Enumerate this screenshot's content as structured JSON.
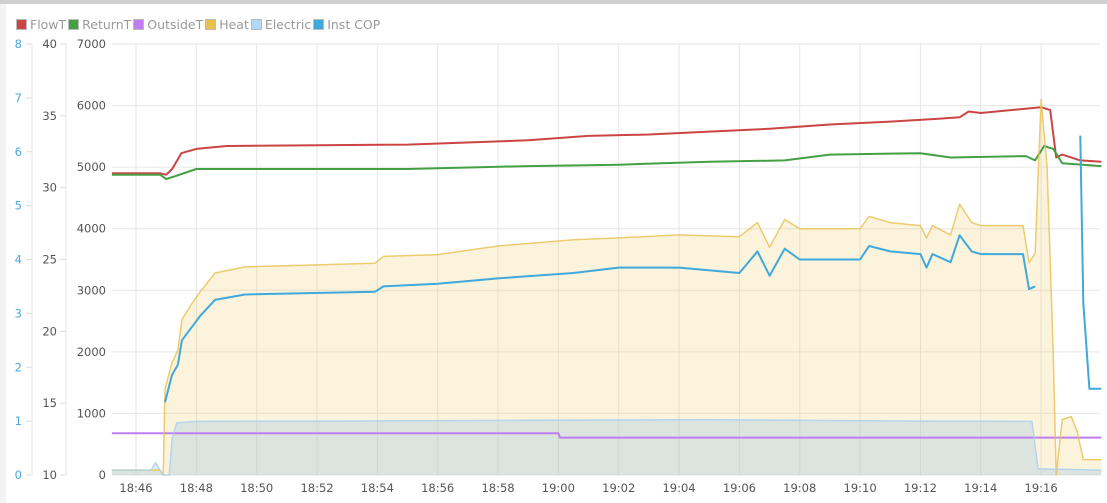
{
  "chart_data": {
    "type": "line",
    "title": "",
    "x_unit": "minutes after 18:45",
    "x_ticks": [
      "18:46",
      "18:48",
      "18:50",
      "18:52",
      "18:54",
      "18:56",
      "18:58",
      "19:00",
      "19:02",
      "19:04",
      "19:06",
      "19:08",
      "19:10",
      "19:12",
      "19:14",
      "19:16"
    ],
    "xlim": [
      0.2,
      33.0
    ],
    "axes": {
      "cop": {
        "ticks": [
          "0",
          "1",
          "2",
          "3",
          "4",
          "5",
          "6",
          "7",
          "8"
        ],
        "range": [
          0,
          8
        ],
        "color": "#4aa8df"
      },
      "temp": {
        "ticks": [
          "10",
          "15",
          "20",
          "25",
          "30",
          "35",
          "40"
        ],
        "range": [
          10,
          40
        ]
      },
      "power": {
        "ticks": [
          "0",
          "1000",
          "2000",
          "3000",
          "4000",
          "5000",
          "6000",
          "7000"
        ],
        "range": [
          0,
          7000
        ]
      }
    },
    "grid": true,
    "legend_position": "top-left",
    "series": [
      {
        "name": "FlowT",
        "axis": "temp",
        "color": "#cc4444",
        "fill": false,
        "points": [
          [
            0.2,
            31.0
          ],
          [
            1.8,
            31.0
          ],
          [
            2.0,
            30.9
          ],
          [
            2.2,
            31.3
          ],
          [
            2.5,
            32.4
          ],
          [
            3,
            32.7
          ],
          [
            4,
            32.9
          ],
          [
            10,
            33.0
          ],
          [
            14,
            33.3
          ],
          [
            16,
            33.6
          ],
          [
            18,
            33.7
          ],
          [
            20,
            33.9
          ],
          [
            22,
            34.1
          ],
          [
            24,
            34.4
          ],
          [
            26,
            34.6
          ],
          [
            27.6,
            34.8
          ],
          [
            28.3,
            34.9
          ],
          [
            28.6,
            35.3
          ],
          [
            29,
            35.2
          ],
          [
            31.0,
            35.6
          ],
          [
            31.3,
            35.4
          ],
          [
            31.5,
            32.1
          ],
          [
            31.7,
            32.3
          ],
          [
            32.3,
            31.9
          ],
          [
            33,
            31.8
          ]
        ]
      },
      {
        "name": "ReturnT",
        "axis": "temp",
        "color": "#44a044",
        "fill": false,
        "points": [
          [
            0.2,
            30.9
          ],
          [
            1.8,
            30.9
          ],
          [
            2.0,
            30.6
          ],
          [
            2.3,
            30.8
          ],
          [
            3,
            31.3
          ],
          [
            10,
            31.3
          ],
          [
            14,
            31.5
          ],
          [
            17,
            31.6
          ],
          [
            20,
            31.8
          ],
          [
            22.5,
            31.9
          ],
          [
            24,
            32.3
          ],
          [
            27,
            32.4
          ],
          [
            28,
            32.1
          ],
          [
            30.5,
            32.2
          ],
          [
            30.8,
            31.9
          ],
          [
            31.1,
            32.9
          ],
          [
            31.4,
            32.7
          ],
          [
            31.7,
            31.7
          ],
          [
            33,
            31.5
          ]
        ]
      },
      {
        "name": "OutsideT",
        "axis": "temp",
        "color": "#c07ef0",
        "fill": false,
        "points": [
          [
            0.2,
            12.9
          ],
          [
            15,
            12.9
          ],
          [
            15.05,
            12.6
          ],
          [
            33,
            12.6
          ]
        ]
      },
      {
        "name": "Heat",
        "axis": "power",
        "color": "#e8c050",
        "fill": true,
        "points": [
          [
            0.2,
            80
          ],
          [
            1.8,
            80
          ],
          [
            1.9,
            0
          ],
          [
            1.96,
            1400
          ],
          [
            2.19,
            1820
          ],
          [
            2.39,
            2030
          ],
          [
            2.52,
            2520
          ],
          [
            2.72,
            2680
          ],
          [
            2.86,
            2790
          ],
          [
            3.12,
            2970
          ],
          [
            3.62,
            3280
          ],
          [
            4.61,
            3380
          ],
          [
            8.92,
            3440
          ],
          [
            9.2,
            3550
          ],
          [
            11,
            3580
          ],
          [
            13,
            3720
          ],
          [
            15.5,
            3820
          ],
          [
            17,
            3850
          ],
          [
            19,
            3900
          ],
          [
            21,
            3870
          ],
          [
            21.6,
            4100
          ],
          [
            22,
            3700
          ],
          [
            22.5,
            4150
          ],
          [
            23,
            4000
          ],
          [
            25,
            4000
          ],
          [
            25.3,
            4200
          ],
          [
            26,
            4100
          ],
          [
            27,
            4050
          ],
          [
            27.2,
            3850
          ],
          [
            27.4,
            4050
          ],
          [
            28,
            3900
          ],
          [
            28.3,
            4400
          ],
          [
            28.7,
            4100
          ],
          [
            29,
            4050
          ],
          [
            30.4,
            4050
          ],
          [
            30.6,
            3450
          ],
          [
            30.8,
            3600
          ],
          [
            31.0,
            6100
          ],
          [
            31.2,
            5000
          ],
          [
            31.4,
            2000
          ],
          [
            31.5,
            0
          ],
          [
            31.7,
            900
          ],
          [
            32.0,
            950
          ],
          [
            32.2,
            700
          ],
          [
            32.4,
            250
          ],
          [
            33,
            250
          ]
        ]
      },
      {
        "name": "Electric",
        "axis": "power",
        "color": "#a8d0f0",
        "fill": true,
        "points": [
          [
            0.2,
            80
          ],
          [
            1.5,
            80
          ],
          [
            1.65,
            200
          ],
          [
            1.8,
            80
          ],
          [
            1.9,
            0
          ],
          [
            2.1,
            0
          ],
          [
            2.2,
            600
          ],
          [
            2.35,
            850
          ],
          [
            3,
            870
          ],
          [
            10,
            880
          ],
          [
            20,
            900
          ],
          [
            25,
            880
          ],
          [
            30.7,
            870
          ],
          [
            30.9,
            100
          ],
          [
            33,
            80
          ]
        ]
      },
      {
        "name": "Inst COP",
        "axis": "cop",
        "color": "#3fa9dc",
        "fill": false,
        "points": [
          [
            1.96,
            1.35
          ],
          [
            2.19,
            1.85
          ],
          [
            2.39,
            2.05
          ],
          [
            2.52,
            2.5
          ],
          [
            2.72,
            2.65
          ],
          [
            2.86,
            2.75
          ],
          [
            3.12,
            2.95
          ],
          [
            3.62,
            3.25
          ],
          [
            4.61,
            3.35
          ],
          [
            8.92,
            3.4
          ],
          [
            9.2,
            3.5
          ],
          [
            11,
            3.55
          ],
          [
            13,
            3.65
          ],
          [
            15.5,
            3.75
          ],
          [
            17,
            3.85
          ],
          [
            19,
            3.85
          ],
          [
            21,
            3.75
          ],
          [
            21.6,
            4.15
          ],
          [
            22,
            3.7
          ],
          [
            22.5,
            4.2
          ],
          [
            23,
            4.0
          ],
          [
            25,
            4.0
          ],
          [
            25.3,
            4.25
          ],
          [
            26,
            4.15
          ],
          [
            27,
            4.1
          ],
          [
            27.2,
            3.85
          ],
          [
            27.4,
            4.1
          ],
          [
            28,
            3.95
          ],
          [
            28.3,
            4.45
          ],
          [
            28.7,
            4.15
          ],
          [
            29,
            4.1
          ],
          [
            30.4,
            4.1
          ],
          [
            30.6,
            3.45
          ],
          [
            30.8,
            3.5
          ],
          null,
          [
            32.3,
            6.3
          ],
          [
            32.4,
            3.2
          ],
          [
            32.6,
            1.6
          ],
          [
            33,
            1.6
          ]
        ]
      }
    ]
  }
}
